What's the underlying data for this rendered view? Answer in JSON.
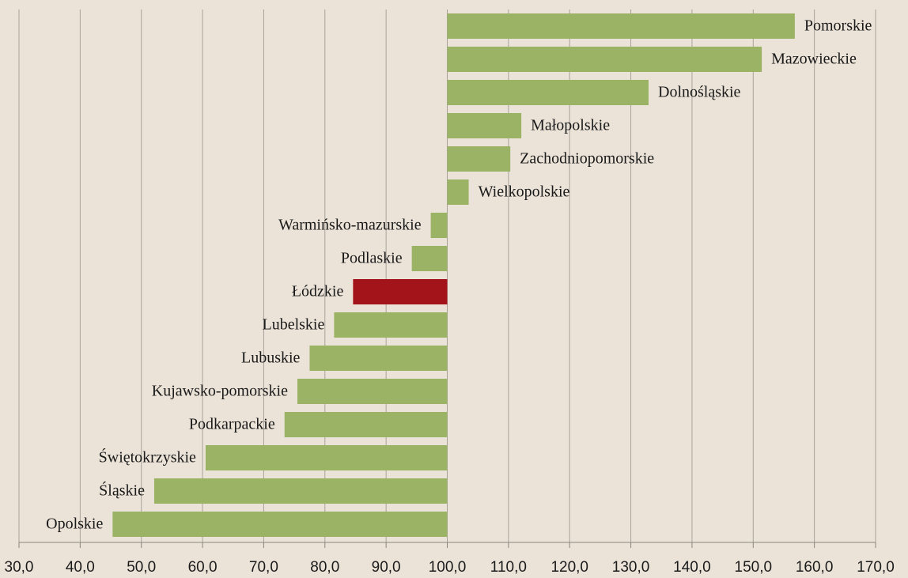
{
  "chart_data": {
    "type": "bar",
    "orientation": "horizontal",
    "categories": [
      "Pomorskie",
      "Mazowieckie",
      "Dolnośląskie",
      "Małopolskie",
      "Zachodniopomorskie",
      "Wielkopolskie",
      "Warmińsko-mazurskie",
      "Podlaskie",
      "Łódzkie",
      "Lubelskie",
      "Lubuskie",
      "Kujawsko-pomorskie",
      "Podkarpackie",
      "Świętokrzyskie",
      "Śląskie",
      "Opolskie"
    ],
    "values": [
      156.8,
      151.4,
      132.9,
      112.1,
      110.3,
      103.5,
      97.3,
      94.2,
      84.6,
      81.5,
      77.5,
      75.5,
      73.4,
      60.5,
      52.1,
      45.3
    ],
    "colors": [
      "#9bb365",
      "#9bb365",
      "#9bb365",
      "#9bb365",
      "#9bb365",
      "#9bb365",
      "#9bb365",
      "#9bb365",
      "#a3141a",
      "#9bb365",
      "#9bb365",
      "#9bb365",
      "#9bb365",
      "#9bb365",
      "#9bb365",
      "#9bb365"
    ],
    "baseline": 100,
    "xlim": [
      30,
      170
    ],
    "xticks": [
      {
        "value": 30,
        "label": "30,0"
      },
      {
        "value": 40,
        "label": "40,0"
      },
      {
        "value": 50,
        "label": "50,0"
      },
      {
        "value": 60,
        "label": "60,0"
      },
      {
        "value": 70,
        "label": "70,0"
      },
      {
        "value": 80,
        "label": "80,0"
      },
      {
        "value": 90,
        "label": "90,0"
      },
      {
        "value": 100,
        "label": "100,0"
      },
      {
        "value": 110,
        "label": "110,0"
      },
      {
        "value": 120,
        "label": "120,0"
      },
      {
        "value": 130,
        "label": "130,0"
      },
      {
        "value": 140,
        "label": "140,0"
      },
      {
        "value": 150,
        "label": "150,0"
      },
      {
        "value": 160,
        "label": "160,0"
      },
      {
        "value": 170,
        "label": "170,0"
      }
    ],
    "grid": true
  }
}
